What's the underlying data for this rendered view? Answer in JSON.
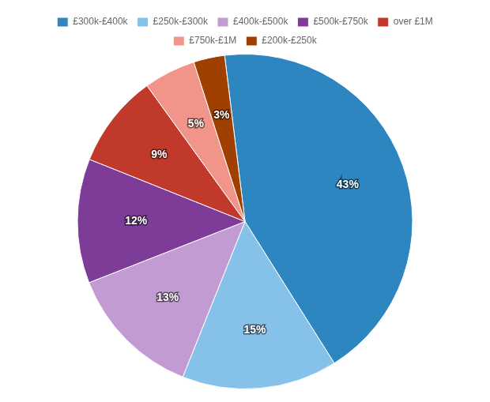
{
  "chart_data": {
    "type": "pie",
    "categories": [
      "£300k-£400k",
      "£250k-£300k",
      "£400k-£500k",
      "£500k-£750k",
      "over £1M",
      "£750k-£1M",
      "£200k-£250k"
    ],
    "values": [
      43,
      15,
      13,
      12,
      9,
      5,
      3
    ],
    "value_labels": [
      "43%",
      "15%",
      "13%",
      "12%",
      "9%",
      "5%",
      "3%"
    ],
    "colors": [
      "#2E86C1",
      "#85C1E9",
      "#C39BD3",
      "#7D3C98",
      "#C0392B",
      "#F1948A",
      "#A04000"
    ],
    "data_labels": true,
    "legend": "top"
  }
}
